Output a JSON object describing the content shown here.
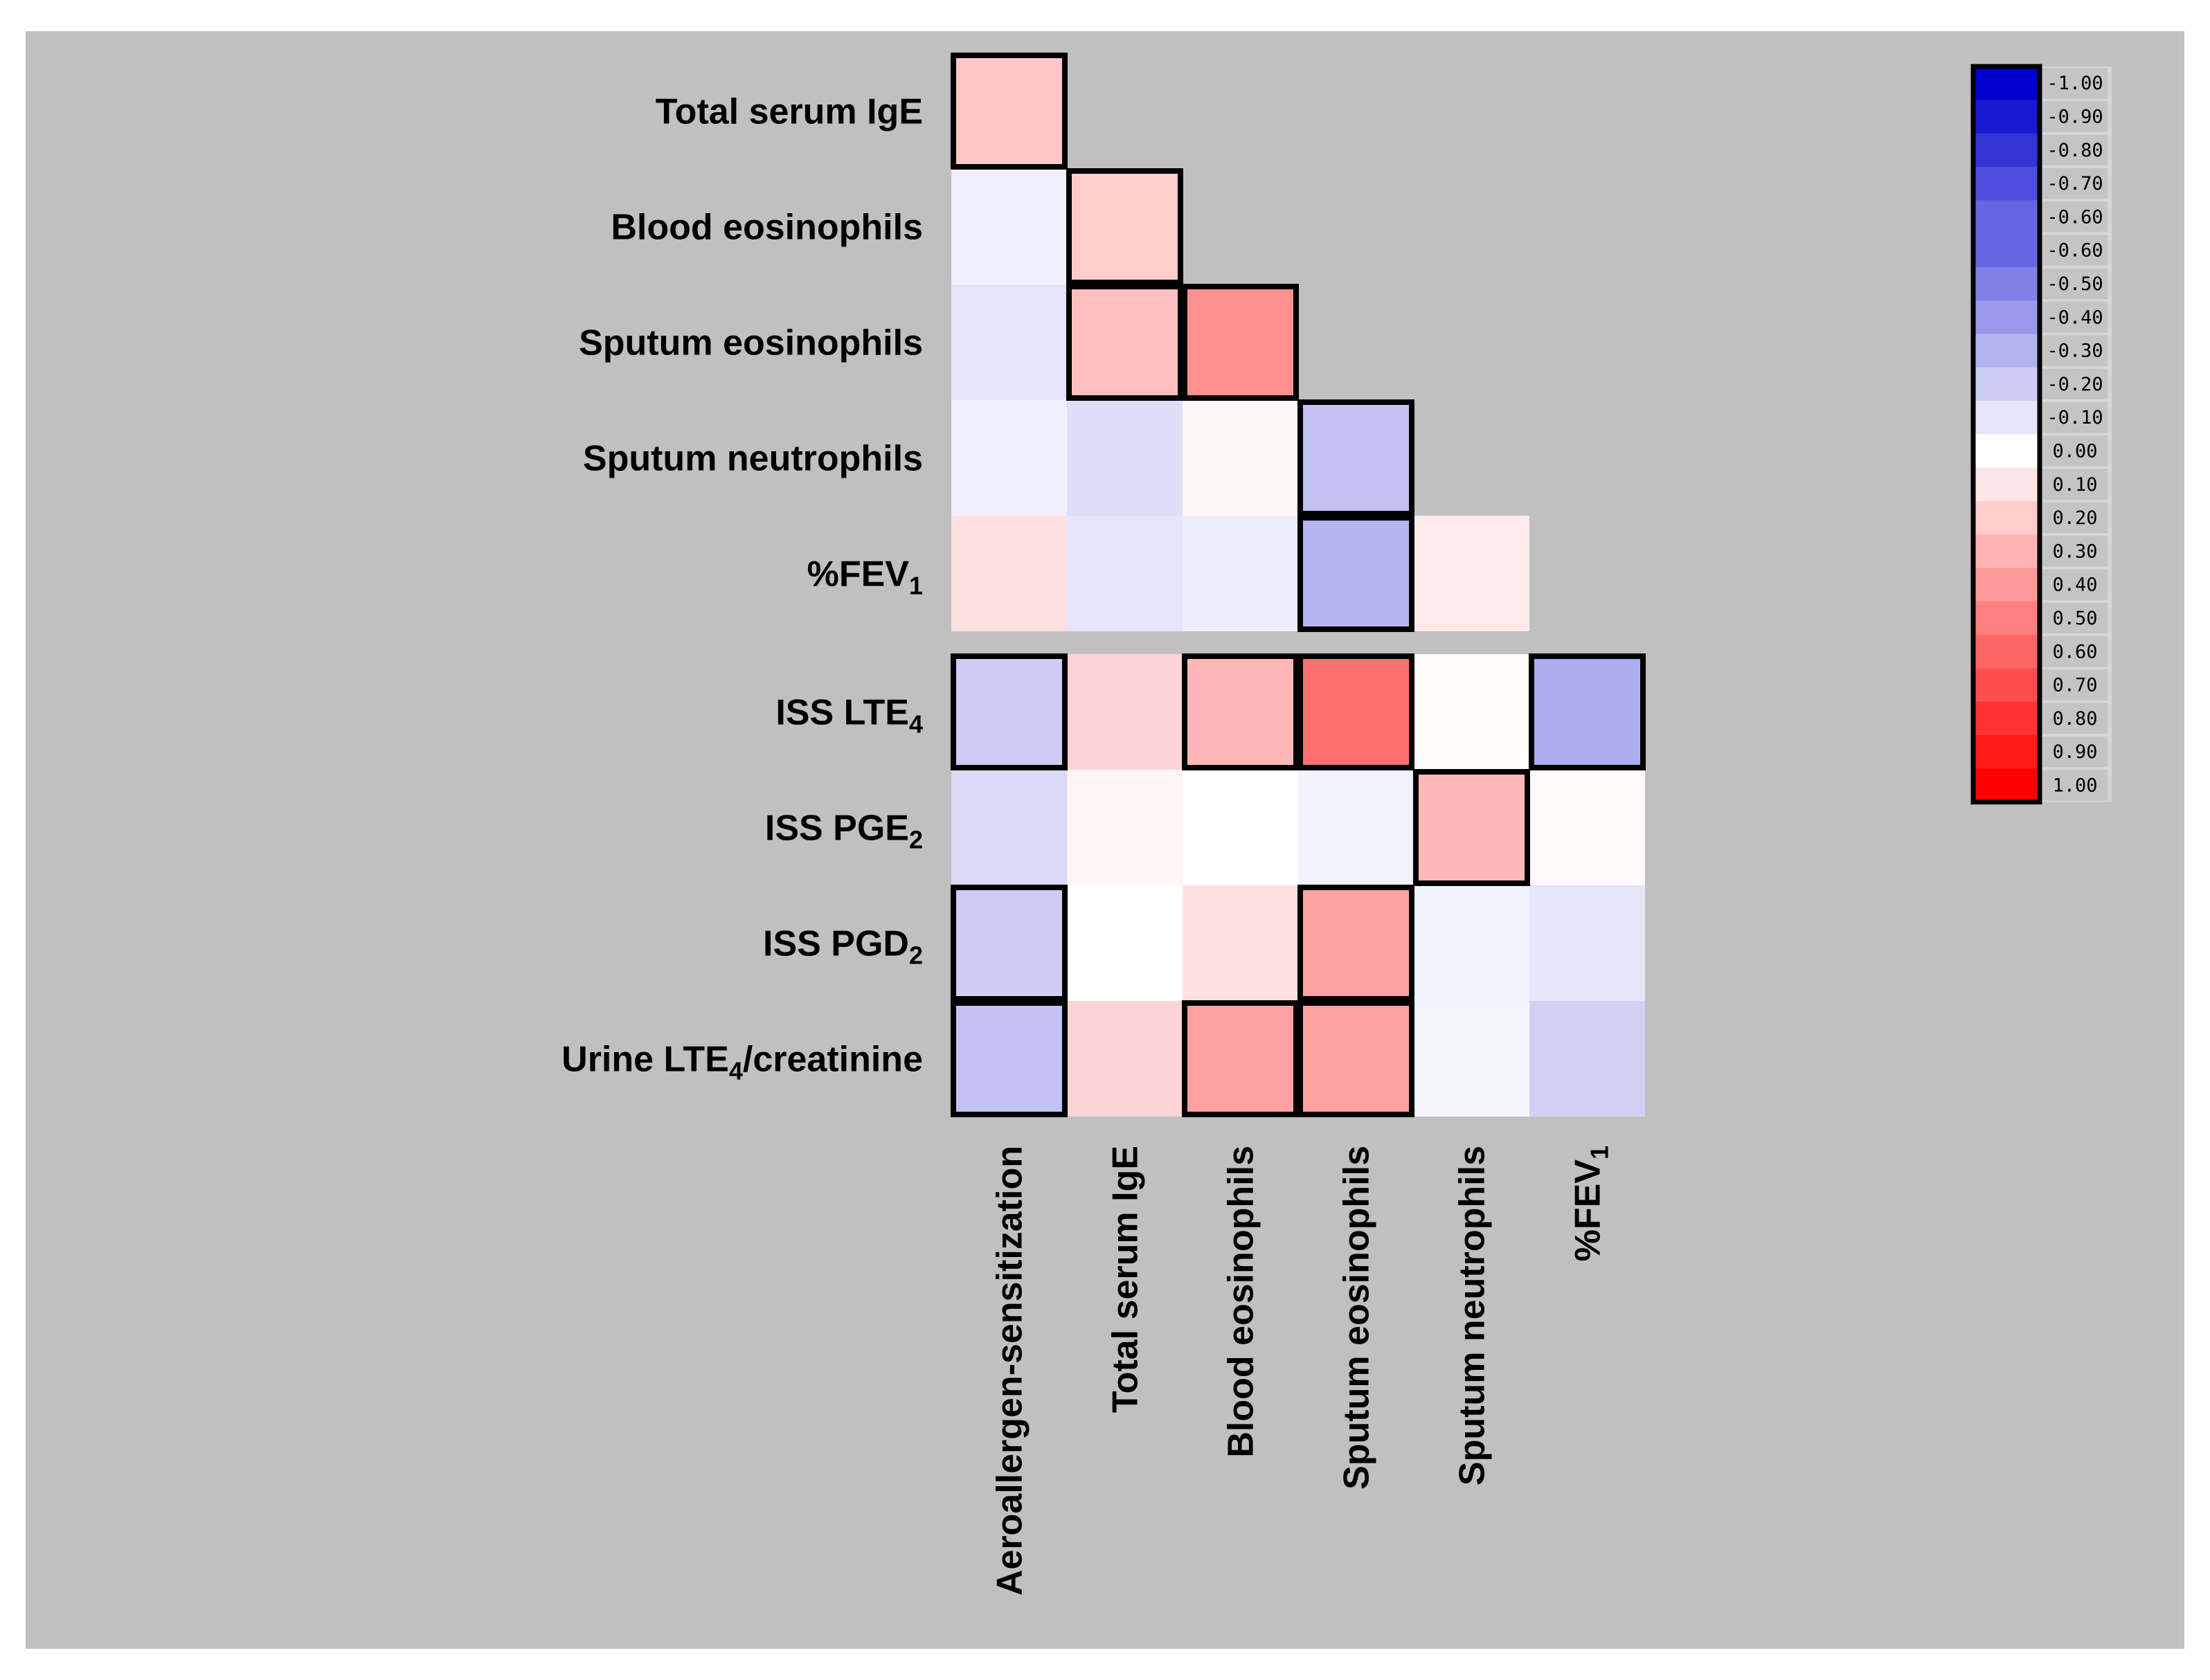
{
  "chart_data": {
    "type": "heatmap",
    "title": "",
    "rows": [
      {
        "main": "Total serum IgE",
        "sub": "",
        "tail": ""
      },
      {
        "main": "Blood eosinophils",
        "sub": "",
        "tail": ""
      },
      {
        "main": "Sputum eosinophils",
        "sub": "",
        "tail": ""
      },
      {
        "main": "Sputum neutrophils",
        "sub": "",
        "tail": ""
      },
      {
        "main": "%FEV",
        "sub": "1",
        "tail": ""
      },
      {
        "main": "ISS LTE",
        "sub": "4",
        "tail": ""
      },
      {
        "main": "ISS PGE",
        "sub": "2",
        "tail": ""
      },
      {
        "main": "ISS PGD",
        "sub": "2",
        "tail": ""
      },
      {
        "main": "Urine LTE",
        "sub": "4",
        "tail": "/creatinine"
      }
    ],
    "columns": [
      {
        "main": "Aeroallergen-sensitization",
        "sub": ""
      },
      {
        "main": "Total serum IgE",
        "sub": ""
      },
      {
        "main": "Blood eosinophils",
        "sub": ""
      },
      {
        "main": "Sputum eosinophils",
        "sub": ""
      },
      {
        "main": "Sputum neutrophils",
        "sub": ""
      },
      {
        "main": "%FEV",
        "sub": "1"
      }
    ],
    "values": [
      [
        0.22
      ],
      [
        -0.06,
        0.2
      ],
      [
        -0.1,
        0.25,
        0.43
      ],
      [
        -0.06,
        -0.13,
        0.03,
        -0.24
      ],
      [
        0.12,
        -0.1,
        -0.07,
        -0.29,
        0.08
      ],
      [
        -0.2,
        0.17,
        0.28,
        0.56,
        0.01,
        -0.32
      ],
      [
        -0.15,
        0.04,
        0.0,
        -0.05,
        0.28,
        0.02
      ],
      [
        -0.2,
        0.0,
        0.12,
        0.37,
        -0.05,
        -0.1
      ],
      [
        -0.24,
        0.17,
        0.37,
        0.37,
        -0.04,
        -0.18
      ]
    ],
    "significant": [
      [
        true
      ],
      [
        false,
        true
      ],
      [
        false,
        true,
        true
      ],
      [
        false,
        false,
        false,
        true
      ],
      [
        false,
        false,
        false,
        true,
        false
      ],
      [
        true,
        false,
        true,
        true,
        false,
        true
      ],
      [
        false,
        false,
        false,
        false,
        true,
        false
      ],
      [
        true,
        false,
        false,
        true,
        false,
        false
      ],
      [
        true,
        false,
        true,
        true,
        false,
        false
      ]
    ],
    "color_scale": {
      "min": -1,
      "max": 1,
      "negative_color": "#0000cc",
      "zero_color": "#ffffff",
      "positive_color": "#ff0000",
      "labels": [
        "-1.00",
        "-0.90",
        "-0.80",
        "-0.70",
        "-0.60",
        "-0.60",
        "-0.50",
        "-0.40",
        "-0.30",
        "-0.20",
        "-0.10",
        "0.00",
        "0.10",
        "0.20",
        "0.30",
        "0.40",
        "0.50",
        "0.60",
        "0.70",
        "0.80",
        "0.90",
        "1.00"
      ],
      "values": [
        -1,
        -0.9,
        -0.8,
        -0.7,
        -0.6,
        -0.6,
        -0.5,
        -0.4,
        -0.3,
        -0.2,
        -0.1,
        0,
        0.1,
        0.2,
        0.3,
        0.4,
        0.5,
        0.6,
        0.7,
        0.8,
        0.9,
        1
      ]
    },
    "legend_placement": "top-right",
    "background": "#c0c0c0"
  }
}
